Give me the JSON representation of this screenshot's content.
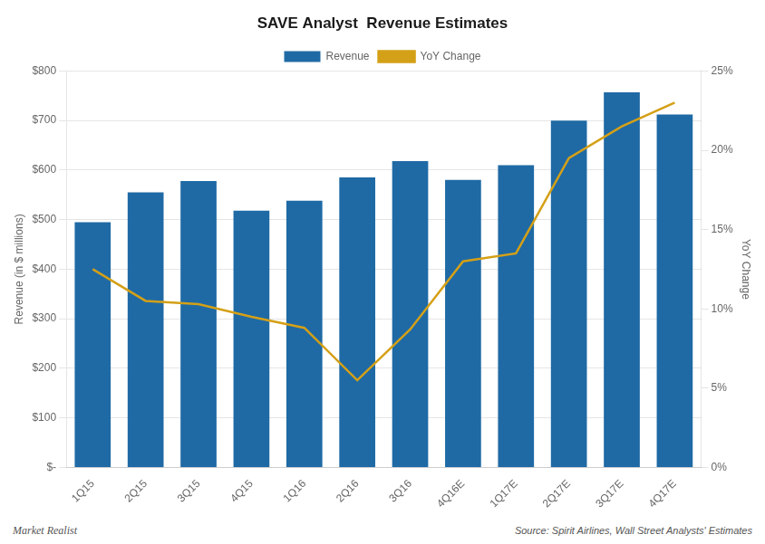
{
  "chart_data": {
    "type": "bar",
    "title": "SAVE Analyst  Revenue Estimates",
    "categories": [
      "1Q15",
      "2Q15",
      "3Q15",
      "4Q15",
      "1Q16",
      "2Q16",
      "3Q16",
      "4Q16E",
      "1Q17E",
      "2Q17E",
      "3Q17E",
      "4Q17E"
    ],
    "series": [
      {
        "name": "Revenue",
        "type": "bar",
        "color": "#1F6AA5",
        "values": [
          495,
          555,
          578,
          518,
          538,
          585,
          618,
          580,
          610,
          700,
          757,
          712
        ]
      },
      {
        "name": "YoY Change",
        "type": "line",
        "color": "#D4A017",
        "axis": "y2",
        "values": [
          0.125,
          0.105,
          0.103,
          0.095,
          0.088,
          0.055,
          0.087,
          0.13,
          0.135,
          0.195,
          0.215,
          0.23
        ]
      }
    ],
    "ylabel": "Revenue (in $ millions)",
    "y2label": "YoY Change",
    "ylim": [
      0,
      800
    ],
    "yticks": [
      {
        "value": 0,
        "label": "$-"
      },
      {
        "value": 100,
        "label": "$100"
      },
      {
        "value": 200,
        "label": "$200"
      },
      {
        "value": 300,
        "label": "$300"
      },
      {
        "value": 400,
        "label": "$400"
      },
      {
        "value": 500,
        "label": "$500"
      },
      {
        "value": 600,
        "label": "$600"
      },
      {
        "value": 700,
        "label": "$700"
      },
      {
        "value": 800,
        "label": "$800"
      }
    ],
    "y2lim": [
      0,
      0.25
    ],
    "y2ticks": [
      {
        "value": 0.0,
        "label": "0%"
      },
      {
        "value": 0.05,
        "label": "5%"
      },
      {
        "value": 0.1,
        "label": "10%"
      },
      {
        "value": 0.15,
        "label": "15%"
      },
      {
        "value": 0.2,
        "label": "20%"
      },
      {
        "value": 0.25,
        "label": "25%"
      }
    ],
    "grid": true,
    "legend": "top",
    "annotations": [
      "Market Realist",
      "Source: Spirit Airlines, Wall Street Analysts' Estimates"
    ]
  }
}
